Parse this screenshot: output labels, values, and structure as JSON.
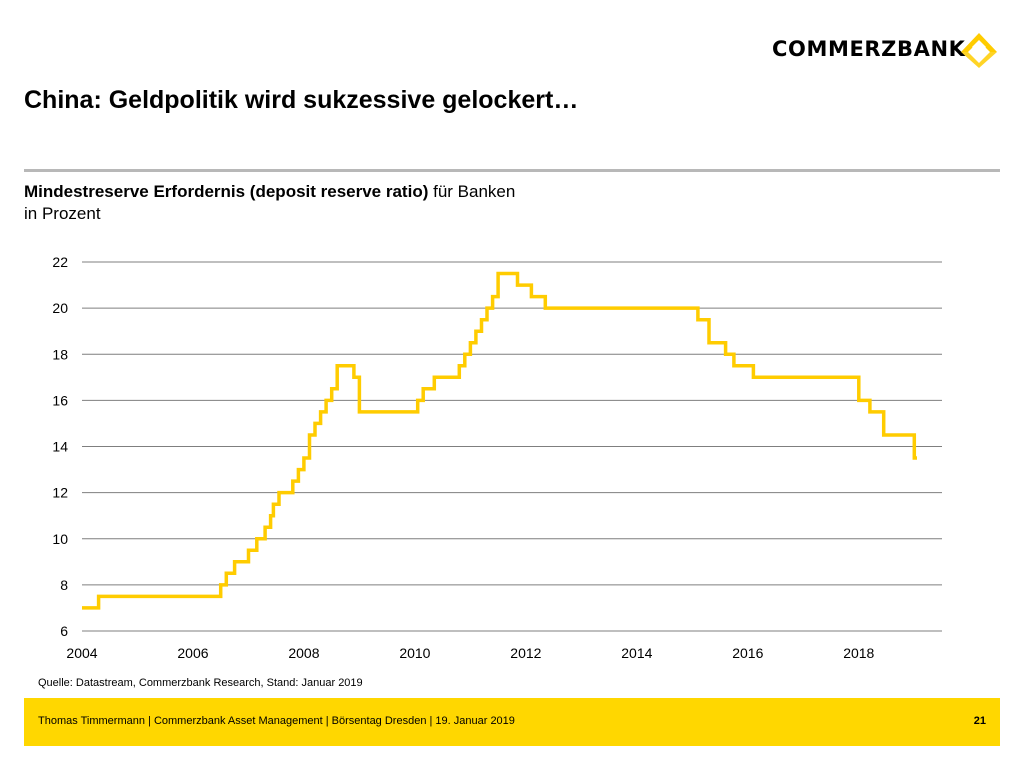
{
  "brand": {
    "name": "COMMERZBANK",
    "logo_icon": "commerzbank-ribbon-icon",
    "logo_color": "#ffcc00"
  },
  "page": {
    "title": "China: Geldpolitik wird sukzessive gelockert…",
    "subtitle_bold": "Mindestreserve Erfordernis (deposit reserve ratio)",
    "subtitle_rest": " für Banken",
    "unit_line": "in Prozent",
    "source": "Quelle: Datastream, Commerzbank Research, Stand: Januar 2019"
  },
  "footer": {
    "text": "Thomas Timmermann | Commerzbank Asset Management | Börsentag Dresden | 19. Januar 2019",
    "page_number": "21",
    "color": "#ffd700"
  },
  "chart_data": {
    "type": "line",
    "title": "Mindestreserve Erfordernis (deposit reserve ratio) für Banken",
    "ylabel": "in Prozent",
    "xlim": [
      2004,
      2019.5
    ],
    "ylim": [
      6,
      22
    ],
    "x_ticks": [
      "2004",
      "2006",
      "2008",
      "2010",
      "2012",
      "2014",
      "2016",
      "2018"
    ],
    "y_ticks": [
      "6",
      "8",
      "10",
      "12",
      "14",
      "16",
      "18",
      "20",
      "22"
    ],
    "grid": "horizontal",
    "line_color": "#ffcc00",
    "step": true,
    "series": [
      {
        "x": [
          2004.0,
          2004.3,
          2006.5,
          2006.6,
          2006.75,
          2007.0,
          2007.15,
          2007.3,
          2007.4,
          2007.45,
          2007.55,
          2007.8,
          2007.9,
          2008.0,
          2008.1,
          2008.2,
          2008.3,
          2008.4,
          2008.5,
          2008.6,
          2008.65,
          2008.9,
          2009.0,
          2010.05,
          2010.15,
          2010.35,
          2010.8,
          2010.9,
          2011.0,
          2011.1,
          2011.2,
          2011.3,
          2011.4,
          2011.5,
          2011.85,
          2012.1,
          2012.35,
          2015.1,
          2015.3,
          2015.6,
          2015.75,
          2016.1,
          2018.0,
          2018.2,
          2018.45,
          2018.75,
          2019.0,
          2019.05
        ],
        "y": [
          7.0,
          7.5,
          8.0,
          8.5,
          9.0,
          9.5,
          10.0,
          10.5,
          11.0,
          11.5,
          12.0,
          12.5,
          13.0,
          13.5,
          14.5,
          15.0,
          15.5,
          16.0,
          16.5,
          17.5,
          17.5,
          17.0,
          15.5,
          16.0,
          16.5,
          17.0,
          17.5,
          18.0,
          18.5,
          19.0,
          19.5,
          20.0,
          20.5,
          21.5,
          21.0,
          20.5,
          20.0,
          19.5,
          18.5,
          18.0,
          17.5,
          17.0,
          16.0,
          15.5,
          14.5,
          14.5,
          13.5,
          13.5
        ]
      }
    ]
  }
}
